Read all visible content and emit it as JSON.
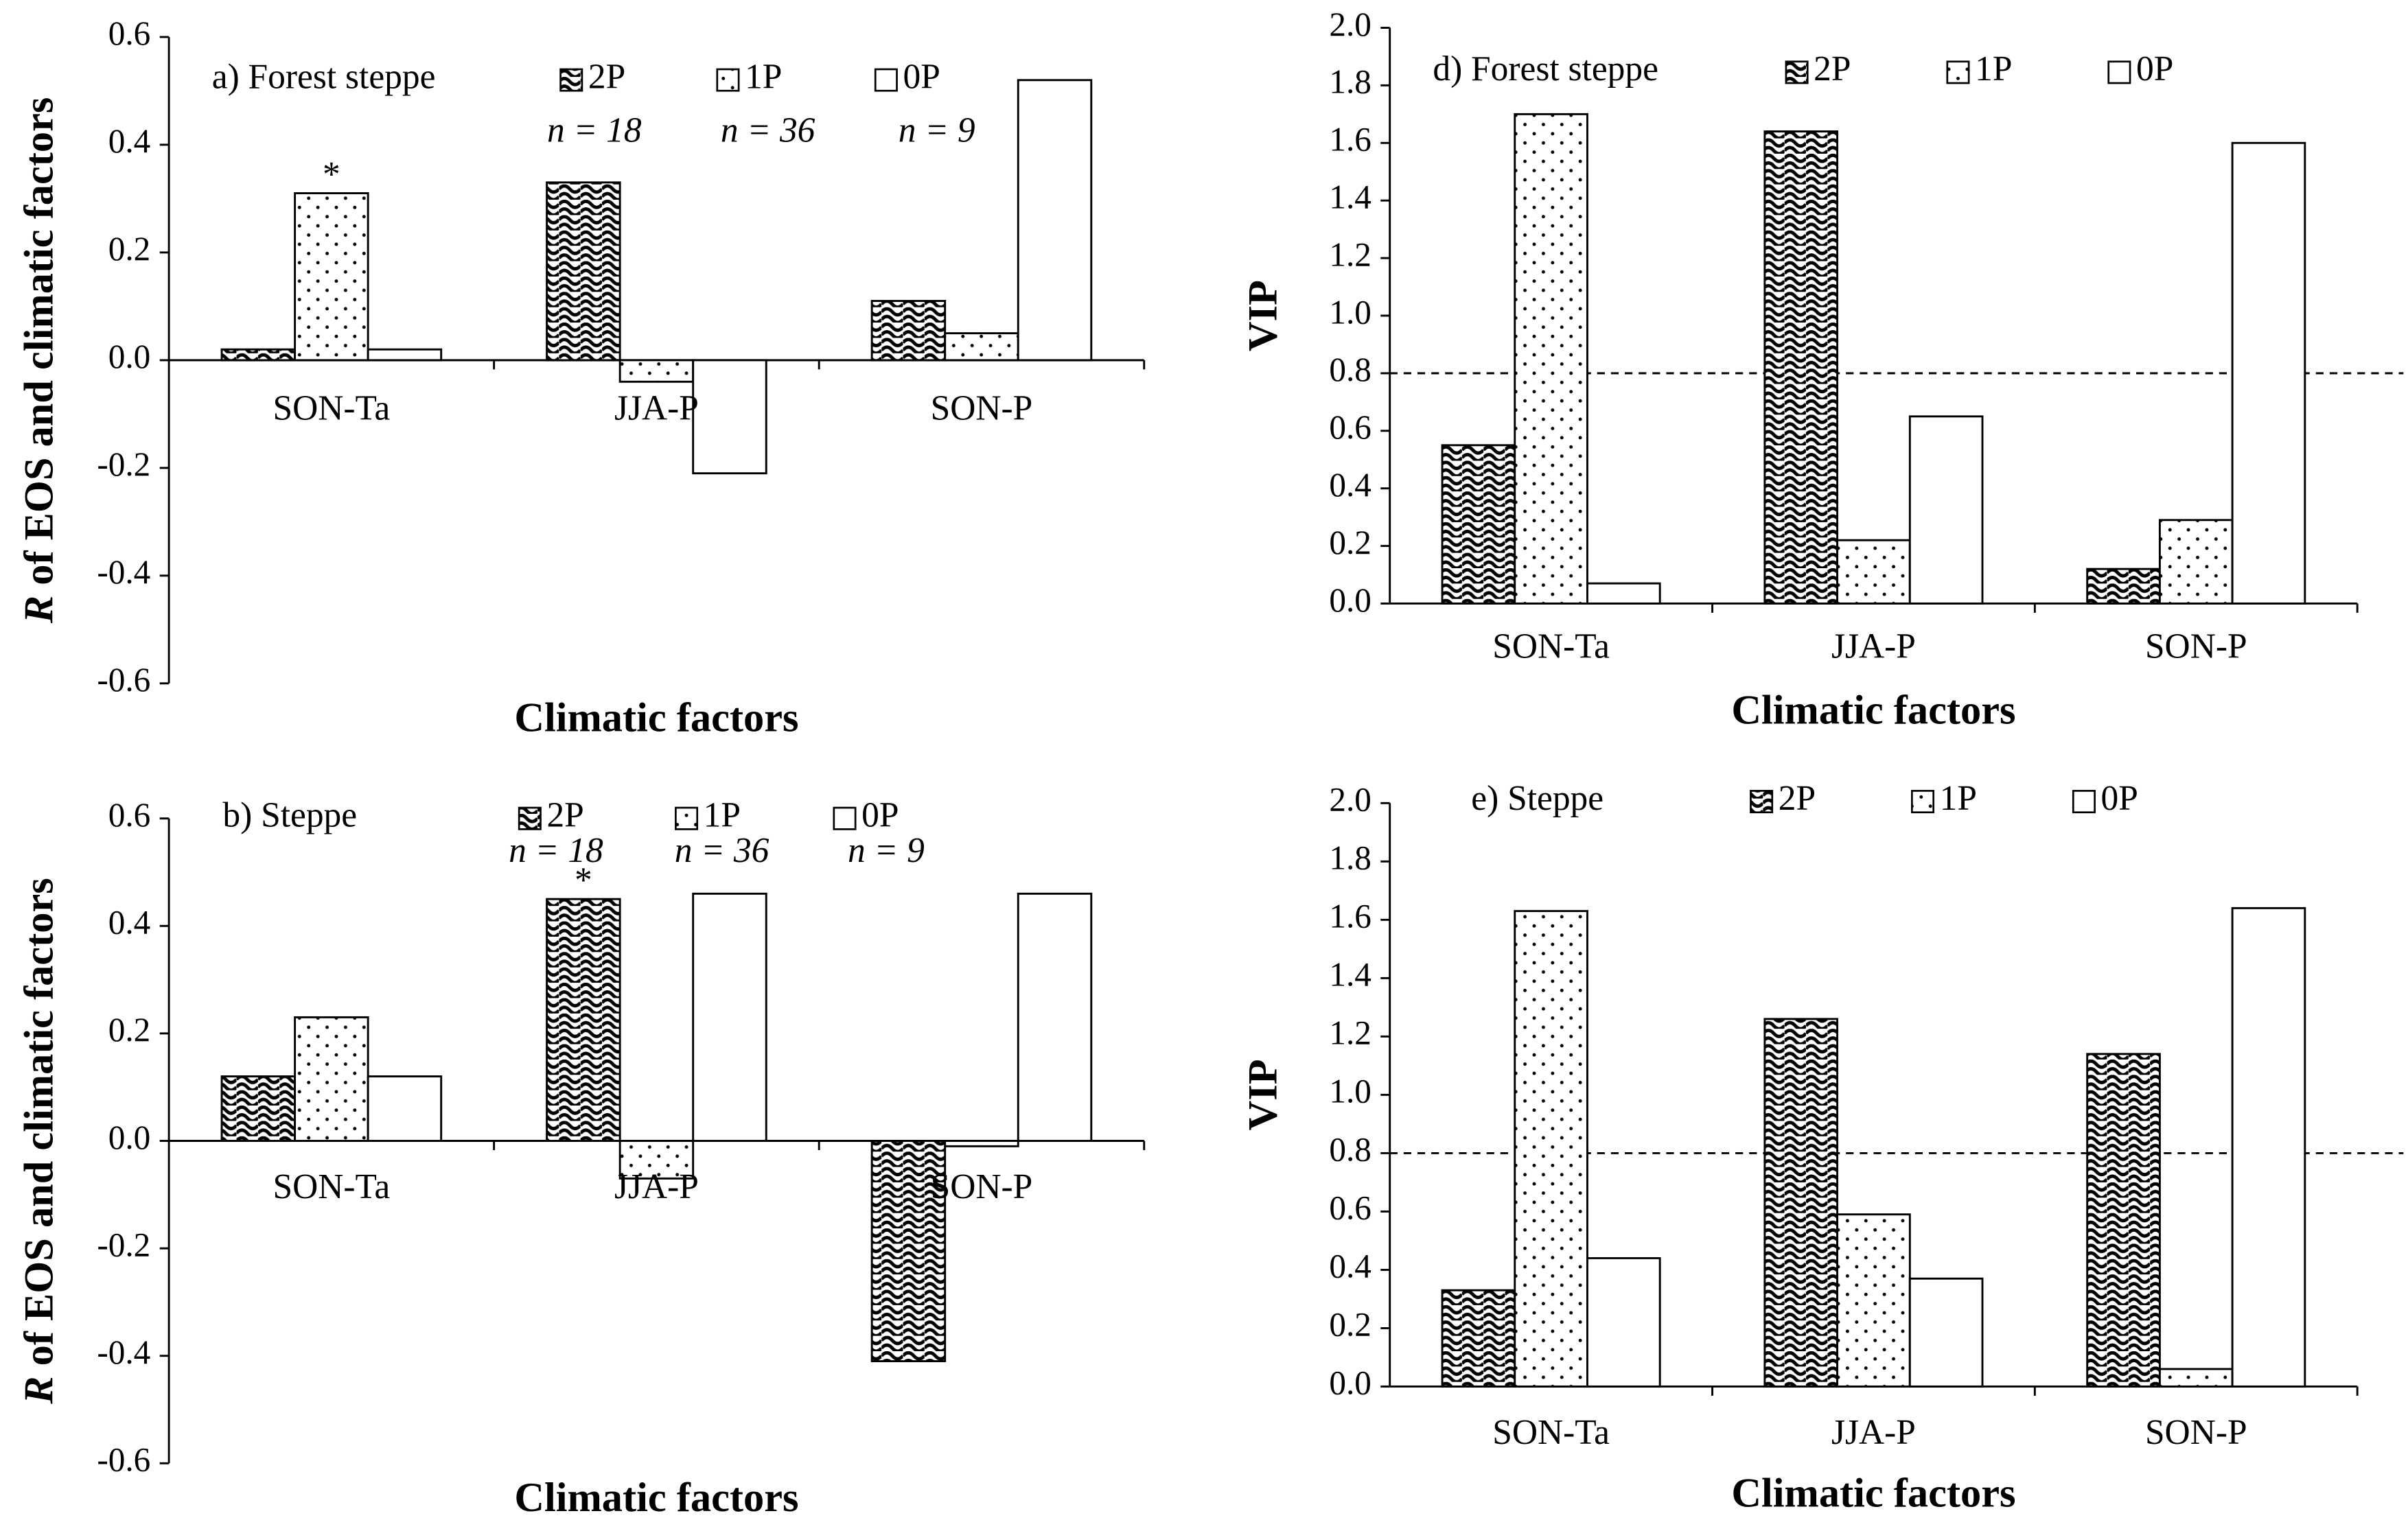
{
  "chart_data": [
    {
      "type": "bar",
      "title": "a) Forest steppe",
      "xlabel": "Climatic factors",
      "ylabel_italic": "R",
      "ylabel": "of EOS and climatic factors",
      "categories": [
        "SON-Ta",
        "JJA-P",
        "SON-P"
      ],
      "series": [
        {
          "name": "2P",
          "pattern": "wave",
          "annotation": "n = 18",
          "values": [
            0.02,
            0.33,
            0.11
          ]
        },
        {
          "name": "1P",
          "pattern": "dots",
          "annotation": "n = 36",
          "values": [
            0.31,
            -0.04,
            0.05
          ],
          "markers": [
            "*",
            null,
            null
          ]
        },
        {
          "name": "0P",
          "pattern": "none",
          "annotation": "n = 9",
          "values": [
            0.02,
            -0.21,
            0.52
          ]
        }
      ],
      "ylim": [
        -0.6,
        0.6
      ],
      "yticks": [
        -0.6,
        -0.4,
        -0.2,
        {
          "value": 0,
          "label": "0.0"
        },
        0.2,
        0.4,
        0.6
      ]
    },
    {
      "type": "bar",
      "title": "b) Steppe",
      "xlabel": "Climatic factors",
      "ylabel_italic": "R",
      "ylabel": "of EOS and climatic factors",
      "categories": [
        "SON-Ta",
        "JJA-P",
        "SON-P"
      ],
      "series": [
        {
          "name": "2P",
          "pattern": "wave",
          "annotation": "n = 18",
          "values": [
            0.12,
            0.45,
            -0.41
          ],
          "markers": [
            null,
            "*",
            null
          ]
        },
        {
          "name": "1P",
          "pattern": "dots",
          "annotation": "n = 36",
          "values": [
            0.23,
            -0.07,
            -0.01
          ]
        },
        {
          "name": "0P",
          "pattern": "none",
          "annotation": "n = 9",
          "values": [
            0.12,
            0.46,
            0.46
          ]
        }
      ],
      "ylim": [
        -0.6,
        0.6
      ],
      "yticks": [
        -0.6,
        -0.4,
        -0.2,
        {
          "value": 0,
          "label": "0.0"
        },
        0.2,
        0.4,
        0.6
      ]
    },
    {
      "type": "bar",
      "title": "d) Forest steppe",
      "xlabel": "Climatic factors",
      "ylabel": "VIP",
      "categories": [
        "SON-Ta",
        "JJA-P",
        "SON-P"
      ],
      "series": [
        {
          "name": "2P",
          "pattern": "wave",
          "values": [
            0.55,
            1.64,
            0.12
          ]
        },
        {
          "name": "1P",
          "pattern": "dots",
          "values": [
            1.7,
            0.22,
            0.29
          ]
        },
        {
          "name": "0P",
          "pattern": "none",
          "values": [
            0.07,
            0.65,
            1.6
          ]
        }
      ],
      "reference_line": 0.8,
      "ylim": [
        0,
        2
      ],
      "yticks": [
        {
          "value": 0,
          "label": "0.0"
        },
        0.2,
        0.4,
        0.6,
        0.8,
        {
          "value": 1,
          "label": "1.0"
        },
        1.2,
        1.4,
        1.6,
        1.8,
        {
          "value": 2,
          "label": "2.0"
        }
      ]
    },
    {
      "type": "bar",
      "title": "e) Steppe",
      "xlabel": "Climatic factors",
      "ylabel": "VIP",
      "categories": [
        "SON-Ta",
        "JJA-P",
        "SON-P"
      ],
      "series": [
        {
          "name": "2P",
          "pattern": "wave",
          "values": [
            0.33,
            1.26,
            1.14
          ]
        },
        {
          "name": "1P",
          "pattern": "dots",
          "values": [
            1.63,
            0.59,
            0.06
          ]
        },
        {
          "name": "0P",
          "pattern": "none",
          "values": [
            0.44,
            0.37,
            1.64
          ]
        }
      ],
      "reference_line": 0.8,
      "ylim": [
        0,
        2
      ],
      "yticks": [
        {
          "value": 0,
          "label": "0.0"
        },
        0.2,
        0.4,
        0.6,
        0.8,
        {
          "value": 1,
          "label": "1.0"
        },
        1.2,
        1.4,
        1.6,
        1.8,
        {
          "value": 2,
          "label": "2.0"
        }
      ]
    }
  ]
}
